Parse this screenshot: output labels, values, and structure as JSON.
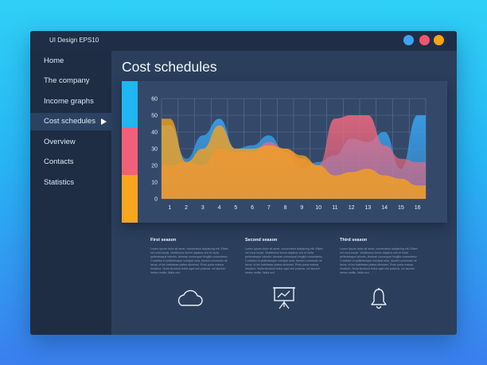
{
  "app": {
    "title": "UI Design EPS10"
  },
  "window_controls": {
    "colors": [
      "#3ba4f5",
      "#f0566e",
      "#f7a31c"
    ]
  },
  "sidebar": {
    "items": [
      {
        "label": "Home",
        "active": false
      },
      {
        "label": "The company",
        "active": false
      },
      {
        "label": "Income graphs",
        "active": false
      },
      {
        "label": "Cost schedules",
        "active": true
      },
      {
        "label": "Overview",
        "active": false
      },
      {
        "label": "Contacts",
        "active": false
      },
      {
        "label": "Statistics",
        "active": false
      }
    ]
  },
  "main": {
    "title": "Cost schedules"
  },
  "chart_data": {
    "type": "area",
    "title": "",
    "xlabel": "",
    "ylabel": "",
    "x": [
      1,
      2,
      3,
      4,
      5,
      6,
      7,
      8,
      9,
      10,
      11,
      12,
      13,
      14,
      15,
      16
    ],
    "ylim": [
      0,
      60
    ],
    "yticks": [
      0,
      10,
      20,
      30,
      40,
      50,
      60
    ],
    "grid": true,
    "legend": "none",
    "series": [
      {
        "color": "#3aa6f4",
        "values": [
          44,
          24,
          38,
          48,
          30,
          32,
          38,
          28,
          18,
          22,
          26,
          36,
          34,
          40,
          18,
          50
        ]
      },
      {
        "color": "#f2687f",
        "values": [
          20,
          22,
          20,
          30,
          28,
          28,
          34,
          30,
          24,
          20,
          48,
          50,
          50,
          32,
          24,
          22
        ]
      },
      {
        "color": "#f7a31c",
        "values": [
          48,
          22,
          30,
          44,
          30,
          30,
          32,
          30,
          26,
          20,
          14,
          16,
          18,
          14,
          12,
          8
        ]
      }
    ]
  },
  "seasons": [
    {
      "title": "First season",
      "body": "Lorem ipsum dolor sit amet, consectetur adipiscing elit. Etiam vel nunc turpis. Vestibulum lorem dapibus orci et nulla pellentesque lobortis. Aenean consequat fringilla consectetur. Curabitur et pellentesque volutpat urna, laoreet commodo mi lacus, ut leo habitasse platea dictumst. Proin porta massa tincidunt. Nulla tincidunt tellus eget nisl pulvinar, vel laoreet metus mollis. Nulla orci.",
      "icon": "cloud-icon"
    },
    {
      "title": "Second season",
      "body": "Lorem ipsum dolor sit amet, consectetur adipiscing elit. Etiam vel nunc turpis. Vestibulum lorem dapibus orci et nulla pellentesque lobortis. Aenean consequat fringilla consectetur. Curabitur et pellentesque volutpat urna, laoreet commodo mi lacus, ut leo habitasse platea dictumst. Proin porta massa tincidunt. Nulla tincidunt tellus eget nisl pulvinar, vel laoreet metus mollis. Nulla orci.",
      "icon": "presentation-board-icon"
    },
    {
      "title": "Third season",
      "body": "Lorem ipsum dolor sit amet, consectetur adipiscing elit. Etiam vel nunc turpis. Vestibulum lorem dapibus orci et nulla pellentesque lobortis. Aenean consequat fringilla consectetur. Curabitur et pellentesque volutpat urna, laoreet commodo mi lacus, ut leo habitasse platea dictumst. Proin porta massa tincidunt. Nulla tincidunt tellus eget nisl pulvinar, vel laoreet metus mollis. Nulla orci.",
      "icon": "bell-icon"
    }
  ]
}
